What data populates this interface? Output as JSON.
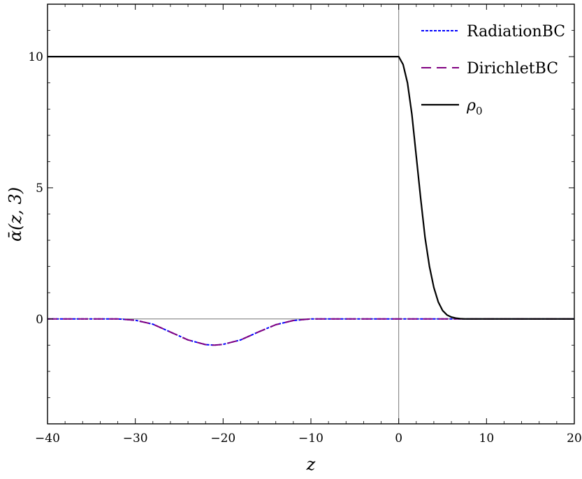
{
  "chart_data": {
    "type": "line",
    "title": "",
    "xlabel": "z",
    "ylabel": "ᾱ(z, 3)",
    "xlim": [
      -40,
      20
    ],
    "ylim": [
      -4,
      12
    ],
    "xticks": [
      -40,
      -30,
      -20,
      -10,
      0,
      10,
      20
    ],
    "xtick_labels": [
      "−40",
      "−30",
      "−20",
      "−10",
      "0",
      "10",
      "20"
    ],
    "yticks": [
      0,
      5,
      10
    ],
    "ytick_labels": [
      "0",
      "5",
      "10"
    ],
    "grid": false,
    "legend_position": "top-right",
    "series": [
      {
        "name": "RadiationBC",
        "color": "#0000ff",
        "style": "dotted",
        "x": [
          -40,
          -35,
          -32,
          -30,
          -28,
          -26,
          -24,
          -22,
          -21,
          -20,
          -18,
          -16,
          -14,
          -12,
          -10,
          -5,
          0,
          5,
          10,
          20
        ],
        "y": [
          0,
          0,
          0,
          -0.05,
          -0.2,
          -0.5,
          -0.8,
          -0.98,
          -1.0,
          -0.97,
          -0.8,
          -0.5,
          -0.22,
          -0.06,
          0,
          0,
          0,
          0,
          0,
          0
        ]
      },
      {
        "name": "DirichletBC",
        "color": "#800080",
        "style": "dashed",
        "x": [
          -40,
          -35,
          -32,
          -30,
          -28,
          -26,
          -24,
          -22,
          -21,
          -20,
          -18,
          -16,
          -14,
          -12,
          -10,
          -5,
          0,
          5,
          10,
          20
        ],
        "y": [
          0,
          0,
          0,
          -0.05,
          -0.2,
          -0.5,
          -0.8,
          -0.98,
          -1.0,
          -0.97,
          -0.8,
          -0.5,
          -0.22,
          -0.06,
          0,
          0,
          0,
          0,
          0,
          0
        ]
      },
      {
        "name": "ρ",
        "name_subscript": "0",
        "color": "#000000",
        "style": "solid",
        "x": [
          -40,
          -20,
          0,
          0.5,
          1,
          1.5,
          2,
          2.5,
          3,
          3.5,
          4,
          4.5,
          5,
          5.5,
          6,
          6.5,
          7,
          7.5,
          8,
          10,
          20
        ],
        "y": [
          10,
          10,
          10,
          9.7,
          9.0,
          7.8,
          6.2,
          4.6,
          3.1,
          2.0,
          1.2,
          0.65,
          0.32,
          0.15,
          0.07,
          0.03,
          0.01,
          0,
          0,
          0,
          0
        ]
      }
    ]
  }
}
